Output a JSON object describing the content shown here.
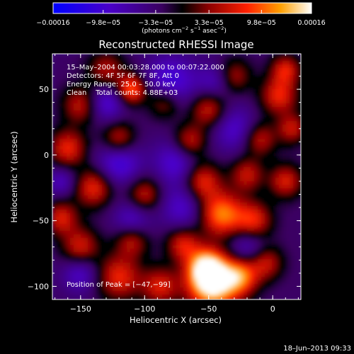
{
  "chart_data": {
    "type": "heatmap",
    "title": "Reconstructed RHESSI Image",
    "xlabel": "Heliocentric X (arcsec)",
    "ylabel": "Heliocentric Y (arcsec)",
    "xlim": [
      -172,
      22
    ],
    "ylim": [
      -110,
      77
    ],
    "x_ticks": [
      -150,
      -100,
      -50,
      0
    ],
    "y_ticks": [
      -100,
      -50,
      0,
      50
    ],
    "x_tick_labels": [
      "−150",
      "−100",
      "−50",
      "0"
    ],
    "y_tick_labels": [
      "−100",
      "−50",
      "0",
      "50"
    ],
    "colorbar": {
      "min": -0.00016,
      "max": 0.00016,
      "tick_values": [
        -0.00016,
        -9.8e-05,
        -3.3e-05,
        3.3e-05,
        9.8e-05,
        0.00016
      ],
      "tick_labels": [
        "−0.00016",
        "−9.8e−05",
        "−3.3e−05",
        "3.3e−05",
        "9.8e−05",
        "0.00016"
      ],
      "unit_prefix": "(photons cm",
      "unit_exp1": "−2",
      "unit_mid": " s",
      "unit_exp2": "−1",
      "unit_mid2": " asec",
      "unit_exp3": "−2",
      "unit_suffix": ")"
    },
    "annotations": [
      "15–May–2004 00:03:28.000 to 00:07:22.000",
      "Detectors: 4F 5F 6F 7F 8F, Att 0",
      "Energy Range: 25.0 – 50.0 keV",
      "Clean    Total counts: 4.88E+03"
    ],
    "peak_label": "Position of Peak = [−47,−99]",
    "peak": {
      "x": -47,
      "y": -99
    },
    "blobs": [
      {
        "x": -47,
        "y": -99,
        "r": 14,
        "v": 1.0
      },
      {
        "x": -52,
        "y": -85,
        "r": 10,
        "v": 0.75
      },
      {
        "x": -25,
        "y": -92,
        "r": 10,
        "v": 0.65
      },
      {
        "x": -120,
        "y": -93,
        "r": 12,
        "v": 0.55
      },
      {
        "x": -88,
        "y": -100,
        "r": 10,
        "v": 0.5
      },
      {
        "x": -5,
        "y": -82,
        "r": 9,
        "v": 0.45
      },
      {
        "x": -150,
        "y": -70,
        "r": 10,
        "v": 0.5
      },
      {
        "x": -110,
        "y": -65,
        "r": 9,
        "v": 0.45
      },
      {
        "x": -70,
        "y": -68,
        "r": 9,
        "v": 0.5
      },
      {
        "x": -40,
        "y": -45,
        "r": 12,
        "v": 0.75
      },
      {
        "x": -15,
        "y": -50,
        "r": 10,
        "v": 0.55
      },
      {
        "x": -165,
        "y": -48,
        "r": 9,
        "v": 0.5
      },
      {
        "x": -140,
        "y": -25,
        "r": 10,
        "v": 0.55
      },
      {
        "x": -100,
        "y": -30,
        "r": 9,
        "v": 0.45
      },
      {
        "x": -55,
        "y": -20,
        "r": 10,
        "v": 0.55
      },
      {
        "x": -20,
        "y": -15,
        "r": 9,
        "v": 0.45
      },
      {
        "x": 10,
        "y": -20,
        "r": 9,
        "v": 0.5
      },
      {
        "x": -160,
        "y": 5,
        "r": 10,
        "v": 0.55
      },
      {
        "x": -120,
        "y": 12,
        "r": 9,
        "v": 0.5
      },
      {
        "x": -65,
        "y": 10,
        "r": 9,
        "v": 0.5
      },
      {
        "x": -10,
        "y": 12,
        "r": 9,
        "v": 0.45
      },
      {
        "x": 15,
        "y": 20,
        "r": 8,
        "v": 0.45
      },
      {
        "x": -150,
        "y": 38,
        "r": 10,
        "v": 0.45
      },
      {
        "x": -85,
        "y": 40,
        "r": 9,
        "v": 0.45
      },
      {
        "x": -50,
        "y": 35,
        "r": 10,
        "v": 0.5
      },
      {
        "x": 5,
        "y": 45,
        "r": 10,
        "v": 0.55
      },
      {
        "x": -110,
        "y": 50,
        "r": 8,
        "v": 0.7
      },
      {
        "x": -130,
        "y": 65,
        "r": 10,
        "v": 0.4
      },
      {
        "x": -30,
        "y": 60,
        "r": 9,
        "v": 0.4
      },
      {
        "x": 10,
        "y": 65,
        "r": 8,
        "v": 0.5
      },
      {
        "x": -120,
        "y": -5,
        "r": 12,
        "v": -0.45
      },
      {
        "x": -75,
        "y": -5,
        "r": 12,
        "v": -0.4
      },
      {
        "x": -80,
        "y": 55,
        "r": 14,
        "v": -0.45
      },
      {
        "x": -130,
        "y": 40,
        "r": 10,
        "v": -0.4
      },
      {
        "x": -30,
        "y": 20,
        "r": 12,
        "v": -0.35
      },
      {
        "x": -150,
        "y": -90,
        "r": 10,
        "v": -0.35
      },
      {
        "x": -70,
        "y": -40,
        "r": 12,
        "v": -0.35
      },
      {
        "x": -20,
        "y": -70,
        "r": 10,
        "v": -0.35
      },
      {
        "x": -110,
        "y": -50,
        "r": 10,
        "v": -0.35
      },
      {
        "x": -165,
        "y": -20,
        "r": 8,
        "v": -0.3
      },
      {
        "x": -45,
        "y": 55,
        "r": 10,
        "v": -0.3
      }
    ],
    "grid": false
  },
  "timestamp": "18–Jun–2013 09:33"
}
